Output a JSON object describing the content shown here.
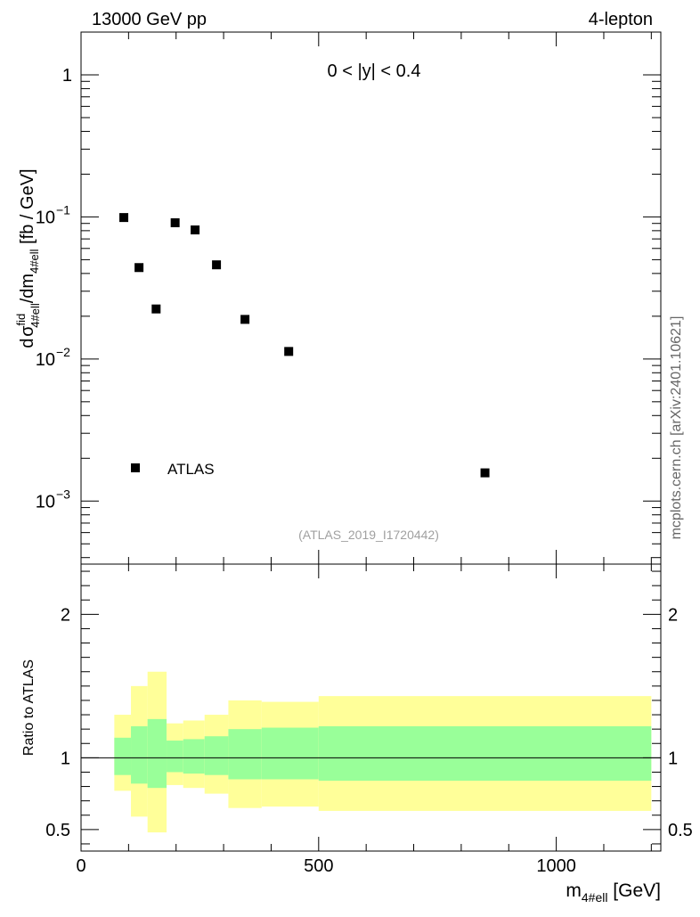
{
  "header": {
    "left": "13000 GeV pp",
    "right": "4-lepton"
  },
  "side_label": "mcplots.cern.ch [arXiv:2401.10621]",
  "chart_data": [
    {
      "type": "scatter",
      "panel": "main",
      "title": "0 < |y| < 0.4",
      "watermark": "(ATLAS_2019_I1720442)",
      "ylabel": "d σ^fid_4#ell / dm_4#ell [fb / GeV]",
      "yscale": "log",
      "xlim": [
        0,
        1220
      ],
      "ylim": [
        0.00036,
        2.0
      ],
      "y_tick_labels": [
        {
          "value": 1,
          "base": "1",
          "exp": ""
        },
        {
          "value": 0.1,
          "base": "10",
          "exp": "−1"
        },
        {
          "value": 0.01,
          "base": "10",
          "exp": "−2"
        },
        {
          "value": 0.001,
          "base": "10",
          "exp": "−3"
        }
      ],
      "legend": {
        "label": "ATLAS",
        "position": "bottom-left"
      },
      "series": [
        {
          "name": "ATLAS",
          "x": [
            90,
            122,
            158,
            198,
            240,
            285,
            345,
            437,
            850
          ],
          "y": [
            0.099,
            0.044,
            0.0225,
            0.091,
            0.081,
            0.046,
            0.019,
            0.0113,
            0.00158
          ]
        }
      ]
    },
    {
      "type": "area",
      "panel": "ratio",
      "ylabel": "Ratio to ATLAS",
      "xlabel": "m_4#ell [GeV]",
      "xlim": [
        0,
        1220
      ],
      "ylim": [
        0.35,
        2.35
      ],
      "x_tick_labels": [
        "0",
        "500",
        "1000"
      ],
      "x_tick_values": [
        0,
        500,
        1000
      ],
      "y_tick_labels": [
        "0.5",
        "1",
        "2"
      ],
      "y_tick_values": [
        0.5,
        1,
        2
      ],
      "reference_line": 1,
      "bins": [
        {
          "lo": 70,
          "hi": 105,
          "inner": [
            0.88,
            1.14
          ],
          "outer": [
            0.77,
            1.3
          ]
        },
        {
          "lo": 105,
          "hi": 140,
          "inner": [
            0.82,
            1.22
          ],
          "outer": [
            0.59,
            1.5
          ]
        },
        {
          "lo": 140,
          "hi": 180,
          "inner": [
            0.79,
            1.27
          ],
          "outer": [
            0.48,
            1.6
          ]
        },
        {
          "lo": 180,
          "hi": 215,
          "inner": [
            0.9,
            1.12
          ],
          "outer": [
            0.81,
            1.24
          ]
        },
        {
          "lo": 215,
          "hi": 260,
          "inner": [
            0.89,
            1.13
          ],
          "outer": [
            0.79,
            1.26
          ]
        },
        {
          "lo": 260,
          "hi": 310,
          "inner": [
            0.88,
            1.15
          ],
          "outer": [
            0.75,
            1.3
          ]
        },
        {
          "lo": 310,
          "hi": 380,
          "inner": [
            0.85,
            1.2
          ],
          "outer": [
            0.65,
            1.4
          ]
        },
        {
          "lo": 380,
          "hi": 500,
          "inner": [
            0.85,
            1.21
          ],
          "outer": [
            0.66,
            1.39
          ]
        },
        {
          "lo": 500,
          "hi": 1200,
          "inner": [
            0.84,
            1.22
          ],
          "outer": [
            0.63,
            1.43
          ]
        }
      ],
      "band_colors": {
        "inner": "#99ff99",
        "outer": "#ffff99"
      }
    }
  ]
}
